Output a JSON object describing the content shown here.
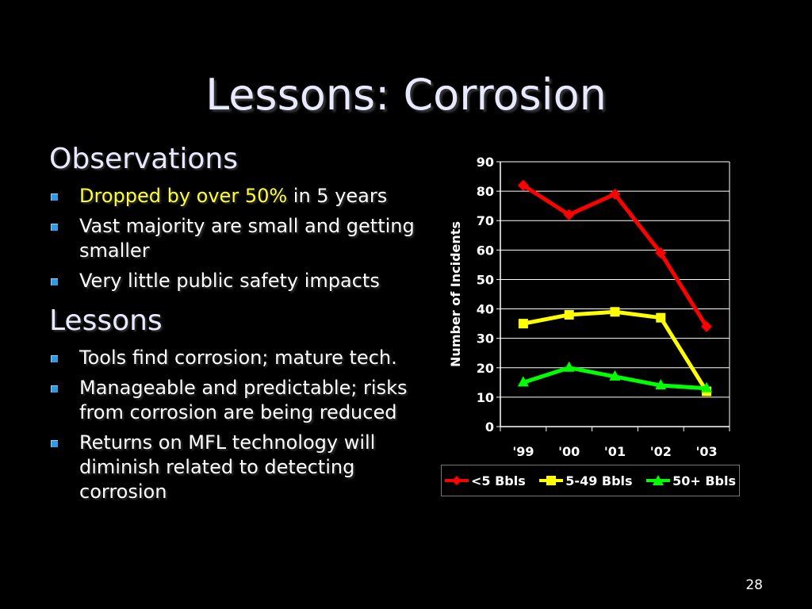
{
  "slide": {
    "title": "Lessons: Corrosion",
    "page_number": "28"
  },
  "observations": {
    "heading": "Observations",
    "bullets": [
      {
        "highlight": "Dropped by over 50%",
        "text": " in 5 years"
      },
      {
        "text": "Vast majority are small and getting smaller"
      },
      {
        "text": "Very little public safety impacts"
      }
    ]
  },
  "lessons": {
    "heading": "Lessons",
    "bullets": [
      {
        "text": "Tools find corrosion; mature tech."
      },
      {
        "text": "Manageable and predictable; risks from corrosion are being reduced"
      },
      {
        "text": "Returns on MFL technology will diminish related to detecting corrosion"
      }
    ]
  },
  "colors": {
    "highlight": "#ffff33",
    "bullet": "#2f9be8"
  },
  "chart_data": {
    "type": "line",
    "title": "",
    "xlabel": "",
    "ylabel": "Number of Incidents",
    "categories": [
      "'99",
      "'00",
      "'01",
      "'02",
      "'03"
    ],
    "ylim": [
      0,
      90
    ],
    "yticks": [
      0,
      10,
      20,
      30,
      40,
      50,
      60,
      70,
      80,
      90
    ],
    "grid": true,
    "legend_position": "bottom",
    "series": [
      {
        "name": "<5 Bbls",
        "color": "#ff0000",
        "marker": "diamond",
        "values": [
          82,
          72,
          79,
          59,
          34
        ]
      },
      {
        "name": "5-49 Bbls",
        "color": "#ffff00",
        "marker": "square",
        "values": [
          35,
          38,
          39,
          37,
          12
        ]
      },
      {
        "name": "50+ Bbls",
        "color": "#00ff00",
        "marker": "triangle",
        "values": [
          15,
          20,
          17,
          14,
          13
        ]
      }
    ]
  }
}
